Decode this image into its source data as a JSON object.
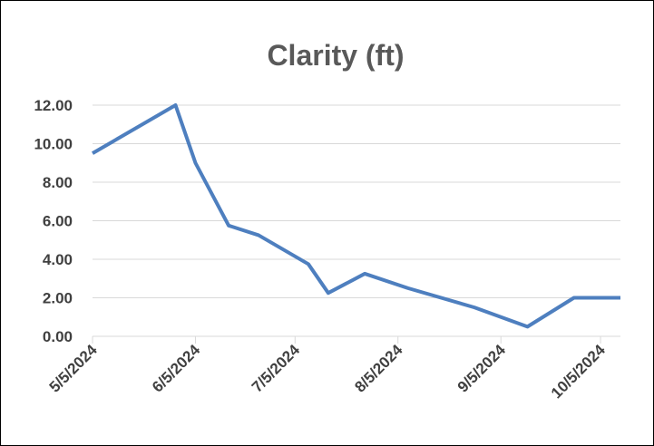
{
  "chart_data": {
    "type": "line",
    "title": "Clarity (ft)",
    "x": [
      "2024-05-05",
      "2024-05-30",
      "2024-06-05",
      "2024-06-15",
      "2024-06-24",
      "2024-07-09",
      "2024-07-15",
      "2024-07-26",
      "2024-08-08",
      "2024-08-28",
      "2024-09-13",
      "2024-09-27",
      "2024-10-11"
    ],
    "series": [
      {
        "name": "Clarity (ft)",
        "color": "#4e7fbf",
        "values": [
          9.5,
          12.0,
          9.0,
          5.75,
          5.25,
          3.75,
          2.25,
          3.25,
          2.5,
          1.5,
          0.5,
          2.0,
          2.0
        ]
      }
    ],
    "xlim": [
      "2024-05-05",
      "2024-10-11"
    ],
    "xticks": [
      {
        "value": "2024-05-05",
        "label": "5/5/2024"
      },
      {
        "value": "2024-06-05",
        "label": "6/5/2024"
      },
      {
        "value": "2024-07-05",
        "label": "7/5/2024"
      },
      {
        "value": "2024-08-05",
        "label": "8/5/2024"
      },
      {
        "value": "2024-09-05",
        "label": "9/5/2024"
      },
      {
        "value": "2024-10-05",
        "label": "10/5/2024"
      }
    ],
    "ylim": [
      0,
      12
    ],
    "yticks": [
      {
        "value": 0,
        "label": "0.00"
      },
      {
        "value": 2,
        "label": "2.00"
      },
      {
        "value": 4,
        "label": "4.00"
      },
      {
        "value": 6,
        "label": "6.00"
      },
      {
        "value": 8,
        "label": "8.00"
      },
      {
        "value": 10,
        "label": "10.00"
      },
      {
        "value": 12,
        "label": "12.00"
      }
    ],
    "grid": true
  }
}
